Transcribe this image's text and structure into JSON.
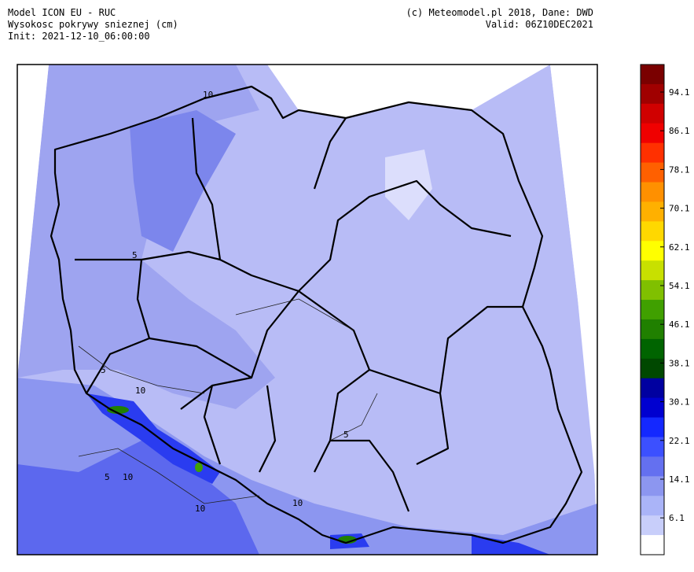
{
  "header": {
    "left": [
      "Model ICON EU  -  RUC",
      "Wysokosc pokrywy snieznej (cm)",
      "Init: 2021-12-10_06:00:00"
    ],
    "right": [
      "(c) Meteomodel.pl 2018, Dane: DWD",
      "Valid: 06Z10DEC2021"
    ]
  },
  "map": {
    "contour_labels": [
      "10",
      "5",
      "5",
      "10",
      "5",
      "5",
      "10",
      "10",
      "10"
    ]
  },
  "colorbar": {
    "ticks": [
      94.1,
      86.1,
      78.1,
      70.1,
      62.1,
      54.1,
      46.1,
      38.1,
      30.1,
      22.1,
      14.1,
      6.1
    ],
    "colors": [
      "#7a0000",
      "#a00000",
      "#d00000",
      "#f00000",
      "#ff3000",
      "#ff6000",
      "#ff9000",
      "#ffb000",
      "#ffd800",
      "#ffff00",
      "#c8e000",
      "#80c000",
      "#40a000",
      "#208000",
      "#006400",
      "#004800",
      "#0000a0",
      "#0000d0",
      "#1428ff",
      "#3c50ff",
      "#6470f0",
      "#8c96f0",
      "#aab4f8",
      "#c8cefa",
      "#ffffff"
    ]
  }
}
